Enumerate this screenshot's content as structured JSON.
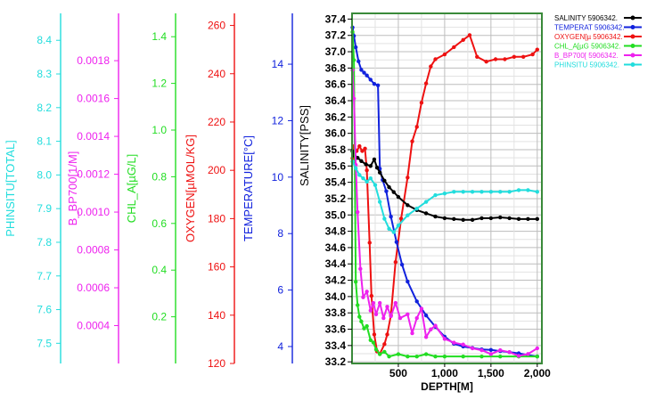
{
  "chart_data": {
    "type": "line",
    "xlabel": "DEPTH[M]",
    "x_ticks": [
      {
        "value": 500,
        "label": "500"
      },
      {
        "value": 1000,
        "label": "1,000"
      },
      {
        "value": 1500,
        "label": "1,500"
      },
      {
        "value": 2000,
        "label": "2,000"
      }
    ],
    "xlim": [
      0,
      2050
    ],
    "grid": true,
    "legend_position": "top-right",
    "axes": [
      {
        "id": "phinsitu",
        "label": "PHINSITU[TOTAL]",
        "color": "#22dddd",
        "lim": [
          7.44,
          8.48
        ],
        "ticks": [
          "7.5",
          "7.6",
          "7.7",
          "7.8",
          "7.9",
          "8.0",
          "8.1",
          "8.2",
          "8.3",
          "8.4"
        ]
      },
      {
        "id": "bbp",
        "label": "B_BP700[1/M]",
        "color": "#ee22ee",
        "lim": [
          0.0002,
          0.00205
        ],
        "ticks": [
          "0.0004",
          "0.0006",
          "0.0008",
          "0.0010",
          "0.0012",
          "0.0014",
          "0.0016",
          "0.0018"
        ]
      },
      {
        "id": "chl",
        "label": "CHL_A[µG/L]",
        "color": "#22dd22",
        "lim": [
          0.0,
          1.5
        ],
        "ticks": [
          "0.2",
          "0.4",
          "0.6",
          "0.8",
          "1.0",
          "1.2",
          "1.4"
        ]
      },
      {
        "id": "oxygen",
        "label": "OXYGEN[µMOL/KG]",
        "color": "#ee1111",
        "lim": [
          120,
          265
        ],
        "ticks": [
          "120",
          "140",
          "160",
          "180",
          "200",
          "220",
          "240",
          "260"
        ]
      },
      {
        "id": "temperature",
        "label": "TEMPERATURE[°C]",
        "color": "#1122dd",
        "lim": [
          3.4,
          15.8
        ],
        "ticks": [
          "4",
          "6",
          "8",
          "10",
          "12",
          "14"
        ]
      },
      {
        "id": "salinity",
        "label": "SALINITY[PSS]",
        "color": "#000000",
        "lim": [
          33.18,
          37.47
        ],
        "ticks": [
          "33.2",
          "33.4",
          "33.6",
          "33.8",
          "34.0",
          "34.2",
          "34.4",
          "34.6",
          "34.8",
          "35.0",
          "35.2",
          "35.4",
          "35.6",
          "35.8",
          "36.0",
          "36.2",
          "36.4",
          "36.6",
          "36.8",
          "37.0",
          "37.2",
          "37.4"
        ]
      }
    ],
    "series": [
      {
        "name": "OXYGEN[µ 5906342.",
        "axis": "oxygen",
        "color": "#ee1111",
        "points": [
          [
            5,
            205
          ],
          [
            20,
            210
          ],
          [
            50,
            208
          ],
          [
            80,
            210
          ],
          [
            110,
            208
          ],
          [
            140,
            209
          ],
          [
            160,
            200
          ],
          [
            190,
            170
          ],
          [
            210,
            148
          ],
          [
            240,
            132
          ],
          [
            270,
            125
          ],
          [
            300,
            124
          ],
          [
            350,
            128
          ],
          [
            380,
            132
          ],
          [
            420,
            140
          ],
          [
            470,
            162
          ],
          [
            530,
            180
          ],
          [
            600,
            197
          ],
          [
            650,
            212
          ],
          [
            700,
            218
          ],
          [
            750,
            228
          ],
          [
            800,
            236
          ],
          [
            850,
            243
          ],
          [
            900,
            246
          ],
          [
            1000,
            248
          ],
          [
            1100,
            251
          ],
          [
            1200,
            254
          ],
          [
            1270,
            256
          ],
          [
            1350,
            247
          ],
          [
            1450,
            245
          ],
          [
            1550,
            246
          ],
          [
            1650,
            246
          ],
          [
            1750,
            247
          ],
          [
            1850,
            247
          ],
          [
            1950,
            248
          ],
          [
            2000,
            250
          ]
        ]
      },
      {
        "name": "TEMPERAT 5906342.",
        "axis": "temperature",
        "color": "#1122dd",
        "points": [
          [
            5,
            15.3
          ],
          [
            20,
            15.0
          ],
          [
            40,
            14.6
          ],
          [
            70,
            14.1
          ],
          [
            100,
            13.8
          ],
          [
            130,
            13.7
          ],
          [
            160,
            13.6
          ],
          [
            200,
            13.45
          ],
          [
            240,
            13.3
          ],
          [
            280,
            13.25
          ],
          [
            300,
            10.3
          ],
          [
            330,
            9.9
          ],
          [
            370,
            9.5
          ],
          [
            420,
            8.6
          ],
          [
            480,
            7.7
          ],
          [
            540,
            6.9
          ],
          [
            600,
            6.3
          ],
          [
            700,
            5.6
          ],
          [
            800,
            5.1
          ],
          [
            900,
            4.7
          ],
          [
            1000,
            4.35
          ],
          [
            1100,
            4.1
          ],
          [
            1200,
            4.0
          ],
          [
            1300,
            3.95
          ],
          [
            1400,
            3.9
          ],
          [
            1500,
            3.88
          ],
          [
            1600,
            3.84
          ],
          [
            1700,
            3.8
          ],
          [
            1800,
            3.76
          ],
          [
            1900,
            3.7
          ],
          [
            2000,
            3.65
          ]
        ]
      },
      {
        "name": "SALINITY 5906342.",
        "axis": "salinity",
        "color": "#000000",
        "points": [
          [
            5,
            35.78
          ],
          [
            30,
            35.72
          ],
          [
            60,
            35.7
          ],
          [
            100,
            35.66
          ],
          [
            150,
            35.62
          ],
          [
            200,
            35.6
          ],
          [
            240,
            35.68
          ],
          [
            270,
            35.58
          ],
          [
            300,
            35.52
          ],
          [
            350,
            35.42
          ],
          [
            400,
            35.34
          ],
          [
            450,
            35.28
          ],
          [
            500,
            35.22
          ],
          [
            600,
            35.12
          ],
          [
            700,
            35.06
          ],
          [
            800,
            35.02
          ],
          [
            900,
            34.98
          ],
          [
            1000,
            34.96
          ],
          [
            1100,
            34.95
          ],
          [
            1200,
            34.94
          ],
          [
            1300,
            34.94
          ],
          [
            1400,
            34.96
          ],
          [
            1500,
            34.96
          ],
          [
            1600,
            34.97
          ],
          [
            1700,
            34.96
          ],
          [
            1800,
            34.95
          ],
          [
            1900,
            34.95
          ],
          [
            2000,
            34.95
          ]
        ]
      },
      {
        "name": "CHL_A[µG 5906342.",
        "axis": "chl",
        "color": "#22dd22",
        "points": [
          [
            5,
            1.42
          ],
          [
            20,
            1.3
          ],
          [
            40,
            0.35
          ],
          [
            60,
            0.25
          ],
          [
            80,
            0.2
          ],
          [
            100,
            0.18
          ],
          [
            130,
            0.15
          ],
          [
            160,
            0.16
          ],
          [
            200,
            0.1
          ],
          [
            230,
            0.09
          ],
          [
            260,
            0.06
          ],
          [
            300,
            0.04
          ],
          [
            350,
            0.05
          ],
          [
            400,
            0.03
          ],
          [
            500,
            0.04
          ],
          [
            600,
            0.03
          ],
          [
            700,
            0.03
          ],
          [
            800,
            0.04
          ],
          [
            900,
            0.03
          ],
          [
            1000,
            0.03
          ],
          [
            1200,
            0.03
          ],
          [
            1400,
            0.03
          ],
          [
            1600,
            0.03
          ],
          [
            1800,
            0.03
          ],
          [
            2000,
            0.03
          ]
        ]
      },
      {
        "name": "B_BP700[ 5906342.",
        "axis": "bbp",
        "color": "#ee22ee",
        "points": [
          [
            5,
            0.00175
          ],
          [
            20,
            0.0016
          ],
          [
            40,
            0.00125
          ],
          [
            60,
            0.001
          ],
          [
            90,
            0.0007
          ],
          [
            120,
            0.00055
          ],
          [
            160,
            0.00058
          ],
          [
            200,
            0.00048
          ],
          [
            230,
            0.00052
          ],
          [
            260,
            0.00046
          ],
          [
            300,
            0.00052
          ],
          [
            340,
            0.00044
          ],
          [
            380,
            0.0005
          ],
          [
            420,
            0.00045
          ],
          [
            470,
            0.00052
          ],
          [
            520,
            0.00044
          ],
          [
            600,
            0.00046
          ],
          [
            650,
            0.00036
          ],
          [
            700,
            0.00044
          ],
          [
            750,
            0.00049
          ],
          [
            800,
            0.00034
          ],
          [
            850,
            0.00038
          ],
          [
            900,
            0.0004
          ],
          [
            1000,
            0.00033
          ],
          [
            1100,
            0.00031
          ],
          [
            1200,
            0.0003
          ],
          [
            1300,
            0.00028
          ],
          [
            1400,
            0.00027
          ],
          [
            1500,
            0.00025
          ],
          [
            1600,
            0.00027
          ],
          [
            1700,
            0.00026
          ],
          [
            1800,
            0.00024
          ],
          [
            1900,
            0.00025
          ],
          [
            2000,
            0.00028
          ]
        ]
      },
      {
        "name": "PHINSITU 5906342.",
        "axis": "phinsitu",
        "color": "#22dddd",
        "points": [
          [
            5,
            8.04
          ],
          [
            40,
            8.02
          ],
          [
            80,
            8.0
          ],
          [
            120,
            7.99
          ],
          [
            160,
            7.98
          ],
          [
            200,
            7.99
          ],
          [
            250,
            7.97
          ],
          [
            300,
            7.92
          ],
          [
            350,
            7.87
          ],
          [
            400,
            7.84
          ],
          [
            450,
            7.83
          ],
          [
            500,
            7.85
          ],
          [
            600,
            7.88
          ],
          [
            700,
            7.9
          ],
          [
            800,
            7.92
          ],
          [
            900,
            7.94
          ],
          [
            1000,
            7.945
          ],
          [
            1100,
            7.95
          ],
          [
            1200,
            7.95
          ],
          [
            1300,
            7.95
          ],
          [
            1400,
            7.95
          ],
          [
            1500,
            7.95
          ],
          [
            1600,
            7.95
          ],
          [
            1700,
            7.95
          ],
          [
            1800,
            7.955
          ],
          [
            1900,
            7.955
          ],
          [
            2000,
            7.95
          ]
        ]
      }
    ],
    "legend": [
      {
        "label": "SALINITY 5906342.",
        "color": "#000000"
      },
      {
        "label": "TEMPERAT 5906342.",
        "color": "#1122dd"
      },
      {
        "label": "OXYGEN[µ 5906342.",
        "color": "#ee1111"
      },
      {
        "label": "CHL_A[µG 5906342.",
        "color": "#22dd22"
      },
      {
        "label": "B_BP700[ 5906342.",
        "color": "#ee22ee"
      },
      {
        "label": "PHINSITU 5906342.",
        "color": "#22dddd"
      }
    ]
  }
}
